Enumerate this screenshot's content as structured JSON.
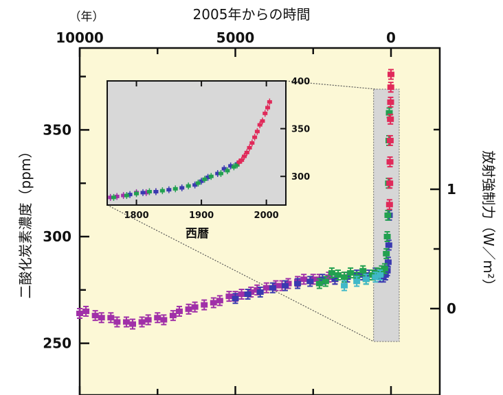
{
  "chart_data": [
    {
      "type": "scatter",
      "title": "",
      "top_axis": {
        "unit_label": "（年）",
        "label": "2005年からの時間",
        "ticks": [
          "10000",
          "5000",
          "0"
        ],
        "tick_values": [
          10000,
          5000,
          0
        ],
        "reversed": true
      },
      "left_axis": {
        "label": "二酸化炭素濃度（ppm）",
        "ticks": [
          "250",
          "300",
          "350"
        ],
        "tick_values": [
          250,
          300,
          350
        ],
        "ylim": [
          245,
          380
        ]
      },
      "right_axis": {
        "label": "放射強制力（W／m²）",
        "ticks": [
          "0",
          "1"
        ],
        "tick_values": [
          0,
          1
        ]
      },
      "plot_background": "#fcf8d6",
      "series": [
        {
          "color": "#a030a8",
          "points": [
            [
              10000,
              264
            ],
            [
              9800,
              265
            ],
            [
              9500,
              263
            ],
            [
              9300,
              262
            ],
            [
              9000,
              262
            ],
            [
              8800,
              260
            ],
            [
              8500,
              260
            ],
            [
              8300,
              259
            ],
            [
              8000,
              260
            ],
            [
              7800,
              261
            ],
            [
              7500,
              262
            ],
            [
              7300,
              261
            ],
            [
              7000,
              263
            ],
            [
              6800,
              265
            ],
            [
              6500,
              266
            ],
            [
              6300,
              267
            ],
            [
              6000,
              268
            ],
            [
              5700,
              269
            ],
            [
              5500,
              270
            ],
            [
              5200,
              272
            ],
            [
              5000,
              272
            ],
            [
              4800,
              273
            ],
            [
              4500,
              274
            ],
            [
              4300,
              275
            ],
            [
              4000,
              276
            ],
            [
              3700,
              277
            ],
            [
              3500,
              277
            ],
            [
              3300,
              278
            ],
            [
              3000,
              279
            ],
            [
              2800,
              280
            ],
            [
              2500,
              280
            ],
            [
              2300,
              280
            ],
            [
              2000,
              281
            ],
            [
              1800,
              280
            ],
            [
              1500,
              281
            ]
          ]
        },
        {
          "color": "#3a3ab0",
          "points": [
            [
              5000,
              271
            ],
            [
              4600,
              273
            ],
            [
              4200,
              274
            ],
            [
              3800,
              276
            ],
            [
              3400,
              277
            ],
            [
              3000,
              278
            ],
            [
              2600,
              279
            ],
            [
              2200,
              280
            ],
            [
              1800,
              280
            ],
            [
              1400,
              281
            ],
            [
              1100,
              282
            ],
            [
              900,
              282
            ],
            [
              700,
              282
            ],
            [
              500,
              283
            ],
            [
              350,
              281
            ],
            [
              250,
              281
            ],
            [
              180,
              282
            ],
            [
              120,
              284
            ],
            [
              90,
              288
            ],
            [
              70,
              296
            ],
            [
              55,
              310
            ]
          ]
        },
        {
          "color": "#22a050",
          "points": [
            [
              2300,
              278
            ],
            [
              2100,
              279
            ],
            [
              1900,
              283
            ],
            [
              1700,
              282
            ],
            [
              1500,
              281
            ],
            [
              1300,
              283
            ],
            [
              1100,
              281
            ],
            [
              900,
              284
            ],
            [
              800,
              280
            ],
            [
              600,
              282
            ],
            [
              450,
              283
            ],
            [
              300,
              284
            ],
            [
              200,
              285
            ],
            [
              150,
              292
            ],
            [
              120,
              300
            ],
            [
              100,
              310
            ],
            [
              80,
              325
            ],
            [
              65,
              345
            ],
            [
              55,
              358
            ]
          ]
        },
        {
          "color": "#e02a5a",
          "points": [
            [
              48,
              315
            ],
            [
              40,
              325
            ],
            [
              32,
              335
            ],
            [
              25,
              345
            ],
            [
              18,
              355
            ],
            [
              12,
              363
            ],
            [
              6,
              370
            ],
            [
              1,
              376
            ]
          ]
        },
        {
          "color": "#40b8c8",
          "points": [
            [
              1500,
              277
            ],
            [
              1100,
              279
            ],
            [
              800,
              280
            ],
            [
              500,
              281
            ],
            [
              350,
              282
            ]
          ]
        }
      ],
      "shaded_range_years_before_2005": [
        250,
        0
      ]
    },
    {
      "type": "scatter",
      "title": "",
      "position": "inset",
      "xlabel": "西暦",
      "x_ticks": [
        "1800",
        "1900",
        "2000"
      ],
      "x_tick_values": [
        1800,
        1900,
        2000
      ],
      "xlim": [
        1755,
        2030
      ],
      "y_ticks": [
        "300",
        "350",
        "400"
      ],
      "y_tick_values": [
        300,
        350,
        400
      ],
      "ylim": [
        270,
        400
      ],
      "plot_background": "#d8d8d8",
      "series": [
        {
          "color": "#a030a8",
          "points": [
            [
              1760,
              278
            ],
            [
              1770,
              279
            ],
            [
              1780,
              280
            ],
            [
              1800,
              283
            ],
            [
              1815,
              283
            ],
            [
              1830,
              284
            ]
          ]
        },
        {
          "color": "#3a3ab0",
          "points": [
            [
              1790,
              281
            ],
            [
              1810,
              283
            ],
            [
              1830,
              284
            ],
            [
              1850,
              286
            ],
            [
              1870,
              288
            ],
            [
              1890,
              291
            ],
            [
              1900,
              295
            ],
            [
              1910,
              299
            ],
            [
              1925,
              303
            ],
            [
              1935,
              308
            ],
            [
              1945,
              311
            ],
            [
              1955,
              313
            ]
          ]
        },
        {
          "color": "#22a050",
          "points": [
            [
              1765,
              278
            ],
            [
              1785,
              280
            ],
            [
              1800,
              282
            ],
            [
              1820,
              284
            ],
            [
              1840,
              285
            ],
            [
              1860,
              287
            ],
            [
              1880,
              290
            ],
            [
              1895,
              293
            ],
            [
              1905,
              297
            ],
            [
              1915,
              300
            ],
            [
              1930,
              303
            ],
            [
              1940,
              306
            ],
            [
              1950,
              310
            ],
            [
              1955,
              312
            ]
          ]
        },
        {
          "color": "#e02a5a",
          "points": [
            [
              1958,
              315
            ],
            [
              1962,
              317
            ],
            [
              1966,
              321
            ],
            [
              1970,
              325
            ],
            [
              1974,
              330
            ],
            [
              1978,
              335
            ],
            [
              1982,
              341
            ],
            [
              1986,
              347
            ],
            [
              1990,
              354
            ],
            [
              1994,
              358
            ],
            [
              1998,
              366
            ],
            [
              2002,
              372
            ],
            [
              2005,
              378
            ]
          ]
        }
      ]
    }
  ]
}
